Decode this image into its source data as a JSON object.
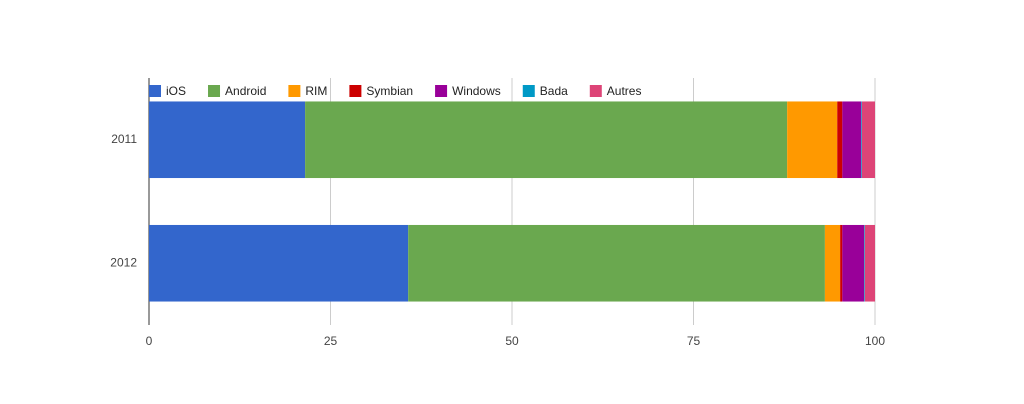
{
  "chart_data": {
    "type": "stacked-bar-horizontal",
    "categories": [
      "2011",
      "2012"
    ],
    "series": [
      {
        "name": "iOS",
        "color": "#3366cc",
        "values": [
          21.5,
          35.7
        ]
      },
      {
        "name": "Android",
        "color": "#6aa84f",
        "values": [
          66.4,
          57.4
        ]
      },
      {
        "name": "RIM",
        "color": "#ff9900",
        "values": [
          6.9,
          2.1
        ]
      },
      {
        "name": "Symbian",
        "color": "#cc0000",
        "values": [
          0.7,
          0.3
        ]
      },
      {
        "name": "Windows",
        "color": "#990099",
        "values": [
          2.6,
          3.0
        ]
      },
      {
        "name": "Bada",
        "color": "#0099c6",
        "values": [
          0.1,
          0.1
        ]
      },
      {
        "name": "Autres",
        "color": "#dd4477",
        "values": [
          1.8,
          1.4
        ]
      }
    ],
    "xlim": [
      0,
      100
    ],
    "xticks": [
      0,
      25,
      50,
      75,
      100
    ],
    "grid": true,
    "legend": "top"
  }
}
